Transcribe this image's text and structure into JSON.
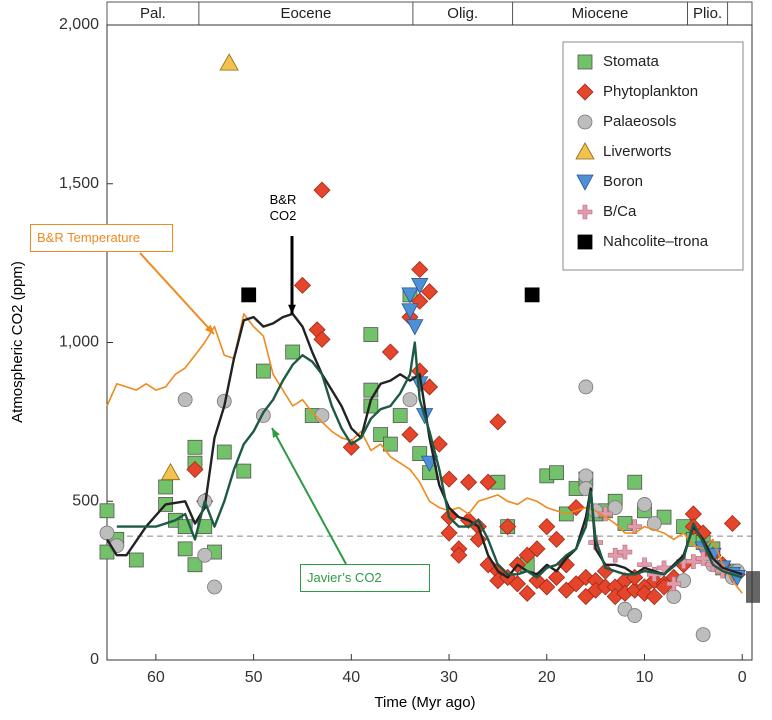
{
  "chart_data": {
    "type": "scatter",
    "x_label": "Time (Myr ago)",
    "y_label": "Atmospheric CO2 (ppm)",
    "xlim": [
      65,
      -1
    ],
    "ylim": [
      0,
      2000
    ],
    "xticks": [
      60,
      50,
      40,
      30,
      20,
      10,
      0
    ],
    "yticks": [
      0,
      500,
      {
        "value": 1000,
        "label": "1,000"
      },
      {
        "value": 1500,
        "label": "1,500"
      },
      {
        "value": 2000,
        "label": "2,000"
      }
    ],
    "epochs": [
      {
        "name": "Pal.",
        "start": 65,
        "end": 55.6
      },
      {
        "name": "Eocene",
        "start": 55.6,
        "end": 33.7
      },
      {
        "name": "Olig.",
        "start": 33.7,
        "end": 23.5
      },
      {
        "name": "Miocene",
        "start": 23.5,
        "end": 5.6
      },
      {
        "name": "Plio.",
        "start": 5.6,
        "end": 1.5
      }
    ],
    "reference_line": 390,
    "ice_core_range": [
      180,
      280
    ],
    "legend": "upper right",
    "series": [
      {
        "name": "Stomata",
        "marker": "square",
        "color": "#72c26a",
        "x": [
          65,
          65,
          64,
          62,
          59,
          59,
          58,
          57,
          57,
          56,
          56,
          56,
          55,
          54,
          53,
          51,
          49,
          46,
          44,
          38,
          38,
          38,
          37,
          36,
          35,
          34,
          33,
          32,
          25,
          24,
          22,
          20,
          19,
          18,
          17,
          16,
          15,
          14,
          13,
          12,
          11,
          10,
          8,
          6,
          5,
          4,
          3,
          2,
          1
        ],
        "values": [
          470,
          340,
          380,
          315,
          545,
          490,
          440,
          420,
          350,
          670,
          620,
          300,
          420,
          340,
          655,
          595,
          910,
          970,
          770,
          1025,
          850,
          800,
          710,
          680,
          770,
          1150,
          650,
          590,
          560,
          420,
          300,
          580,
          590,
          460,
          540,
          570,
          460,
          470,
          500,
          430,
          560,
          470,
          450,
          420,
          380,
          370,
          350,
          290,
          280
        ]
      },
      {
        "name": "Phytoplankton",
        "marker": "diamond",
        "color": "#e5452b",
        "x": [
          56,
          55,
          45,
          43,
          43.5,
          43,
          40,
          36,
          34,
          34,
          33,
          33,
          33,
          32,
          32,
          31,
          30,
          30,
          30,
          29,
          29,
          28,
          28,
          27,
          27,
          26,
          26,
          25,
          25,
          25,
          24,
          24,
          23,
          23,
          22,
          22,
          21,
          21,
          20,
          20,
          19,
          19,
          18,
          18,
          17,
          17,
          16,
          16,
          15,
          15,
          14,
          14,
          13,
          13,
          12,
          12,
          11,
          11,
          10,
          10,
          9,
          9,
          8,
          8,
          7,
          6,
          5,
          5,
          4,
          3,
          2,
          1,
          0.5
        ],
        "values": [
          600,
          500,
          1180,
          1480,
          1040,
          1010,
          670,
          970,
          1080,
          710,
          1230,
          1130,
          910,
          1160,
          860,
          680,
          570,
          450,
          400,
          350,
          330,
          560,
          440,
          420,
          380,
          560,
          300,
          750,
          280,
          250,
          420,
          260,
          240,
          300,
          330,
          210,
          250,
          350,
          420,
          230,
          380,
          260,
          300,
          220,
          240,
          480,
          260,
          200,
          250,
          220,
          230,
          280,
          230,
          200,
          250,
          210,
          220,
          260,
          230,
          210,
          250,
          200,
          240,
          230,
          260,
          300,
          460,
          420,
          400,
          330,
          300,
          430,
          270
        ]
      },
      {
        "name": "Palaeosols",
        "marker": "circle",
        "color": "#bdbdbd",
        "x": [
          65,
          64,
          57,
          55,
          55,
          54,
          53,
          49,
          43,
          34,
          16,
          16,
          16,
          15,
          13,
          12,
          11,
          10,
          9,
          7,
          6,
          4,
          3,
          1,
          0.5
        ],
        "values": [
          400,
          360,
          820,
          500,
          330,
          230,
          815,
          770,
          770,
          820,
          860,
          580,
          540,
          470,
          480,
          160,
          140,
          490,
          430,
          200,
          250,
          80,
          300,
          260,
          280
        ]
      },
      {
        "name": "Liverworts",
        "marker": "triangle-up",
        "color": "#f2c14e",
        "x": [
          52.5,
          58.5
        ],
        "values": [
          1880,
          590
        ]
      },
      {
        "name": "Boron",
        "marker": "triangle-down",
        "color": "#4f8fd6",
        "x": [
          34,
          34,
          33.5,
          33,
          33,
          32.5,
          32,
          4,
          3,
          2,
          1,
          0.5
        ],
        "values": [
          1150,
          1100,
          1050,
          1180,
          870,
          770,
          620,
          350,
          330,
          290,
          270,
          260
        ]
      },
      {
        "name": "B/Ca",
        "marker": "plus",
        "color": "#e39aab",
        "x": [
          15,
          14,
          13,
          12,
          11,
          10,
          9,
          8,
          7,
          6,
          5,
          4,
          3,
          2
        ],
        "values": [
          370,
          460,
          330,
          340,
          420,
          300,
          270,
          290,
          240,
          310,
          310,
          320,
          300,
          280
        ]
      },
      {
        "name": "Nahcolite–trona",
        "marker": "square",
        "color": "#000000",
        "x": [
          50.5,
          21.5
        ],
        "values": [
          1150,
          1150
        ]
      }
    ],
    "curves": [
      {
        "name": "B&R Temperature",
        "color": "#f0891f",
        "label_color": "#f0891f",
        "x": [
          65,
          64,
          63,
          62,
          61,
          60,
          59,
          58,
          57,
          56,
          55,
          54,
          53,
          52,
          51,
          50,
          49,
          48,
          47,
          46,
          45,
          44,
          43,
          42,
          41,
          40,
          39,
          38,
          37,
          36,
          35,
          34,
          33,
          32,
          31,
          30,
          29,
          28,
          27,
          26,
          25,
          24,
          23,
          22,
          21,
          20,
          19,
          18,
          17,
          16,
          15,
          14,
          13,
          12,
          11,
          10,
          9,
          8,
          7,
          6,
          5,
          4,
          3,
          2,
          1,
          0
        ],
        "values": [
          800,
          870,
          860,
          850,
          870,
          850,
          860,
          900,
          920,
          960,
          1000,
          1050,
          960,
          950,
          1090,
          1050,
          1020,
          900,
          850,
          800,
          820,
          780,
          750,
          720,
          700,
          690,
          720,
          660,
          680,
          640,
          620,
          600,
          560,
          500,
          480,
          470,
          480,
          460,
          500,
          510,
          520,
          500,
          490,
          510,
          500,
          480,
          470,
          460,
          470,
          480,
          470,
          450,
          430,
          400,
          400,
          420,
          410,
          400,
          380,
          400,
          360,
          350,
          380,
          300,
          250,
          210
        ]
      },
      {
        "name": "B&R CO2",
        "color": "#222222",
        "label_color": "#000000",
        "x": [
          65,
          64,
          63,
          61,
          59,
          57,
          56,
          55,
          54,
          53,
          52,
          51,
          50,
          49,
          48,
          47,
          46,
          45,
          44,
          43,
          42,
          41,
          40,
          39,
          38,
          37,
          36,
          35,
          34,
          33,
          32,
          31,
          30,
          29,
          28,
          27,
          26,
          25,
          24,
          23,
          22,
          21,
          20,
          19,
          18,
          17,
          16,
          15.5,
          15,
          14,
          13,
          12,
          11,
          10,
          8,
          6,
          5,
          4,
          3,
          2,
          1,
          0
        ],
        "values": [
          380,
          330,
          330,
          420,
          490,
          500,
          430,
          480,
          700,
          800,
          950,
          1070,
          1080,
          1050,
          1060,
          1080,
          1090,
          1050,
          970,
          900,
          850,
          800,
          730,
          700,
          820,
          870,
          880,
          900,
          880,
          900,
          700,
          550,
          480,
          450,
          440,
          420,
          330,
          280,
          260,
          300,
          280,
          270,
          300,
          280,
          320,
          350,
          450,
          540,
          350,
          300,
          300,
          290,
          270,
          290,
          270,
          330,
          420,
          380,
          320,
          290,
          280,
          270
        ]
      },
      {
        "name": "Javier’s CO2",
        "color": "#1d5a44",
        "label_color": "#2f9a45",
        "x": [
          64,
          62,
          60,
          58,
          57,
          56,
          55,
          54,
          53,
          52,
          51,
          50,
          49,
          48,
          47,
          46,
          45,
          44,
          43,
          42,
          41,
          40,
          39,
          38,
          37,
          36,
          35,
          34,
          33.5,
          33,
          32,
          31,
          30,
          29,
          28,
          27,
          26,
          25,
          24,
          23,
          22,
          21,
          20,
          19,
          18,
          17,
          16,
          15.5,
          15,
          14,
          13,
          12,
          11,
          10,
          8,
          6,
          5,
          4,
          3,
          2,
          1,
          0
        ],
        "values": [
          420,
          420,
          420,
          440,
          460,
          380,
          500,
          420,
          500,
          600,
          680,
          720,
          780,
          820,
          880,
          930,
          960,
          940,
          900,
          800,
          730,
          680,
          700,
          760,
          790,
          800,
          840,
          900,
          1000,
          820,
          720,
          600,
          450,
          420,
          420,
          440,
          380,
          300,
          270,
          270,
          280,
          260,
          290,
          300,
          330,
          350,
          420,
          530,
          380,
          290,
          280,
          270,
          270,
          280,
          270,
          320,
          430,
          370,
          300,
          280,
          270,
          260
        ]
      }
    ]
  }
}
